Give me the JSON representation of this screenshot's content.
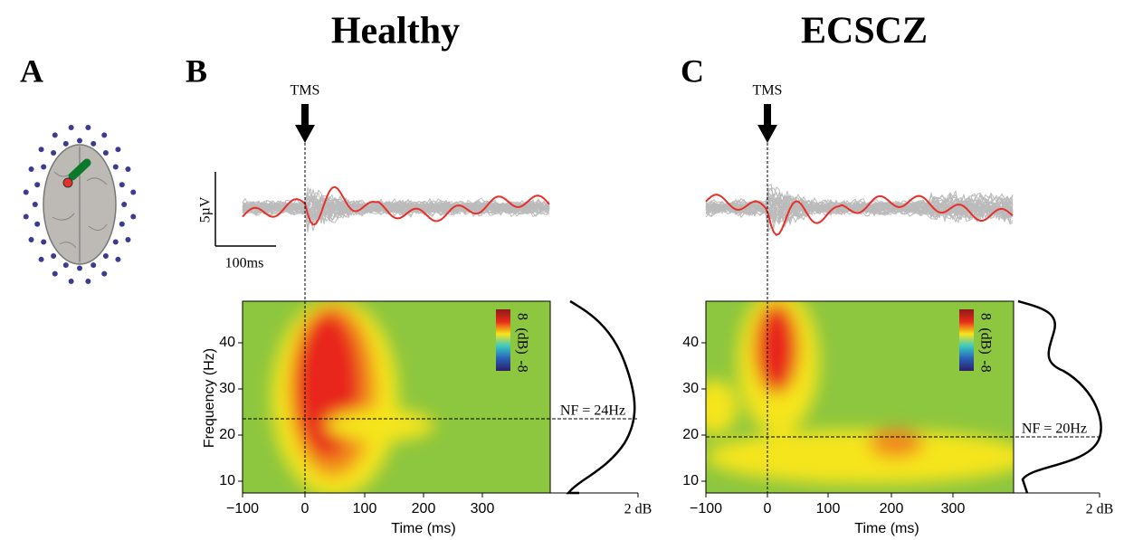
{
  "panel_labels": [
    "A",
    "B",
    "C"
  ],
  "scale_bar": {
    "amplitude": "5µV",
    "time": "100ms"
  },
  "frequency_label": "Frequency (Hz)",
  "groups": [
    {
      "title": "Healthy",
      "stimulus": "TMS",
      "colorbar": {
        "max": "8",
        "unit": "(dB)",
        "min": "-8"
      },
      "nf_label": "NF = 24Hz",
      "power_label": "2 dB",
      "x_ticks": [
        "−100",
        "0",
        "100",
        "200",
        "300"
      ],
      "y_ticks": [
        "10",
        "20",
        "30",
        "40"
      ],
      "x_label": "Time (ms)"
    },
    {
      "title": "ECSCZ",
      "stimulus": "TMS",
      "colorbar": {
        "max": "8",
        "unit": "(dB)",
        "min": "-8"
      },
      "nf_label": "NF = 20Hz",
      "power_label": "2 dB",
      "x_ticks": [
        "−100",
        "0",
        "100",
        "200",
        "300"
      ],
      "y_ticks": [
        "10",
        "20",
        "30",
        "40"
      ],
      "x_label": "Time (ms)"
    }
  ]
}
